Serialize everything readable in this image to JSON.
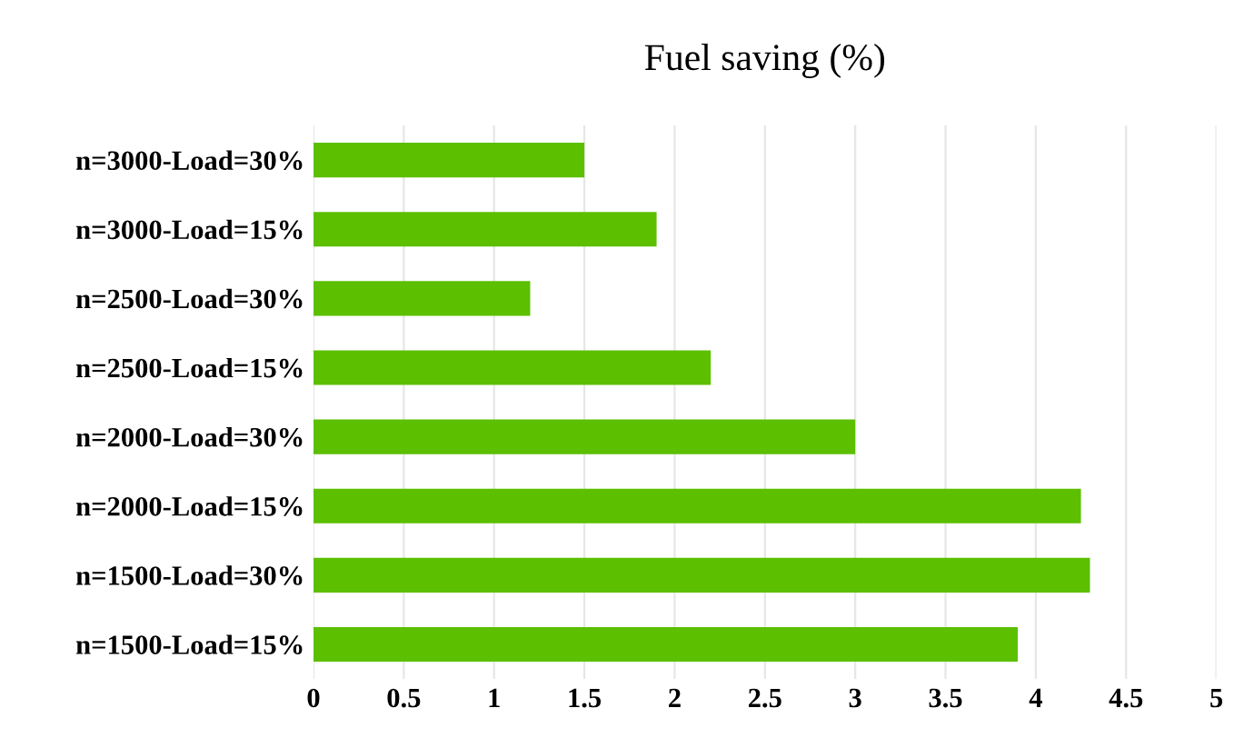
{
  "chart_data": {
    "type": "bar",
    "orientation": "horizontal",
    "title": "Fuel saving (%)",
    "categories": [
      "n=3000-Load=30%",
      "n=3000-Load=15%",
      "n=2500-Load=30%",
      "n=2500-Load=15%",
      "n=2000-Load=30%",
      "n=2000-Load=15%",
      "n=1500-Load=30%",
      "n=1500-Load=15%"
    ],
    "values": [
      1.5,
      1.9,
      1.2,
      2.2,
      3.0,
      4.25,
      4.3,
      3.9
    ],
    "color": "#5cbf00",
    "xlim": [
      0,
      5
    ],
    "xticks": [
      0,
      0.5,
      1,
      1.5,
      2,
      2.5,
      3,
      3.5,
      4,
      4.5,
      5
    ],
    "grid": "x"
  }
}
